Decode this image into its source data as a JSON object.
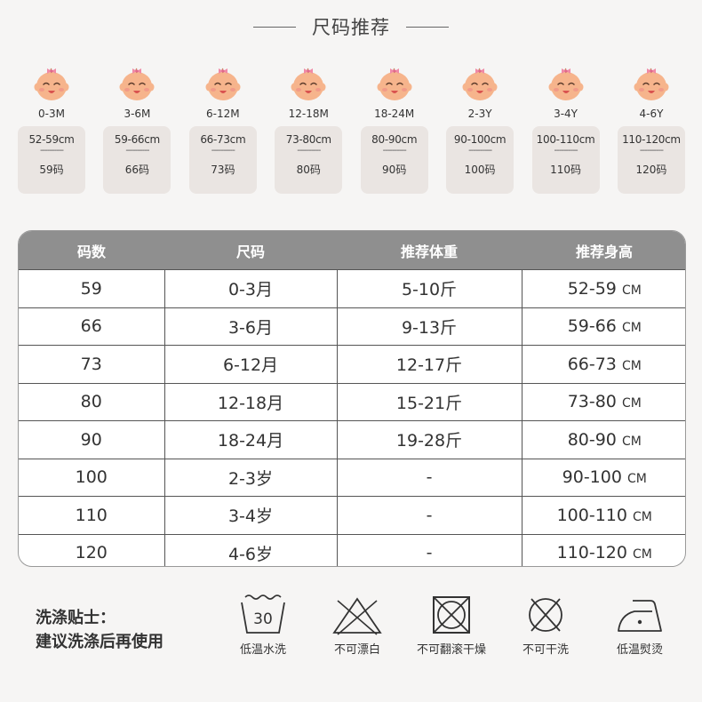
{
  "header": {
    "title": "尺码推荐"
  },
  "sizes": [
    {
      "age": "0-3M",
      "cm": "52-59cm",
      "dash": "----------",
      "code": "59码"
    },
    {
      "age": "3-6M",
      "cm": "59-66cm",
      "dash": "----------",
      "code": "66码"
    },
    {
      "age": "6-12M",
      "cm": "66-73cm",
      "dash": "----------",
      "code": "73码"
    },
    {
      "age": "12-18M",
      "cm": "73-80cm",
      "dash": "----------",
      "code": "80码"
    },
    {
      "age": "18-24M",
      "cm": "80-90cm",
      "dash": "----------",
      "code": "90码"
    },
    {
      "age": "2-3Y",
      "cm": "90-100cm",
      "dash": "----------",
      "code": "100码"
    },
    {
      "age": "3-4Y",
      "cm": "100-110cm",
      "dash": "----------",
      "code": "110码"
    },
    {
      "age": "4-6Y",
      "cm": "110-120cm",
      "dash": "----------",
      "code": "120码"
    }
  ],
  "table": {
    "headers": [
      "码数",
      "尺码",
      "推荐体重",
      "推荐身高"
    ],
    "unit": "CM",
    "rows": [
      {
        "code": "59",
        "size": "0-3月",
        "weight": "5-10斤",
        "height": "52-59"
      },
      {
        "code": "66",
        "size": "3-6月",
        "weight": "9-13斤",
        "height": "59-66"
      },
      {
        "code": "73",
        "size": "6-12月",
        "weight": "12-17斤",
        "height": "66-73"
      },
      {
        "code": "80",
        "size": "12-18月",
        "weight": "15-21斤",
        "height": "73-80"
      },
      {
        "code": "90",
        "size": "18-24月",
        "weight": "19-28斤",
        "height": "80-90"
      },
      {
        "code": "100",
        "size": "2-3岁",
        "weight": "-",
        "height": "90-100"
      },
      {
        "code": "110",
        "size": "3-4岁",
        "weight": "-",
        "height": "100-110"
      },
      {
        "code": "120",
        "size": "4-6岁",
        "weight": "-",
        "height": "110-120"
      }
    ]
  },
  "care": {
    "title": "洗涤贴士：",
    "subtitle": "建议洗涤后再使用",
    "wash_temp": "30",
    "icons": [
      {
        "icon": "wash-30-icon",
        "label": "低温水洗"
      },
      {
        "icon": "no-bleach-icon",
        "label": "不可漂白"
      },
      {
        "icon": "no-tumble-dry-icon",
        "label": "不可翻滚干燥"
      },
      {
        "icon": "no-dry-clean-icon",
        "label": "不可干洗"
      },
      {
        "icon": "low-iron-icon",
        "label": "低温熨烫"
      }
    ]
  },
  "colors": {
    "background": "#f6f5f4",
    "card": "#eae5e2",
    "table_header": "#8f8f8f",
    "baby_skin": "#f6b48c",
    "baby_bow": "#f08aa6"
  }
}
